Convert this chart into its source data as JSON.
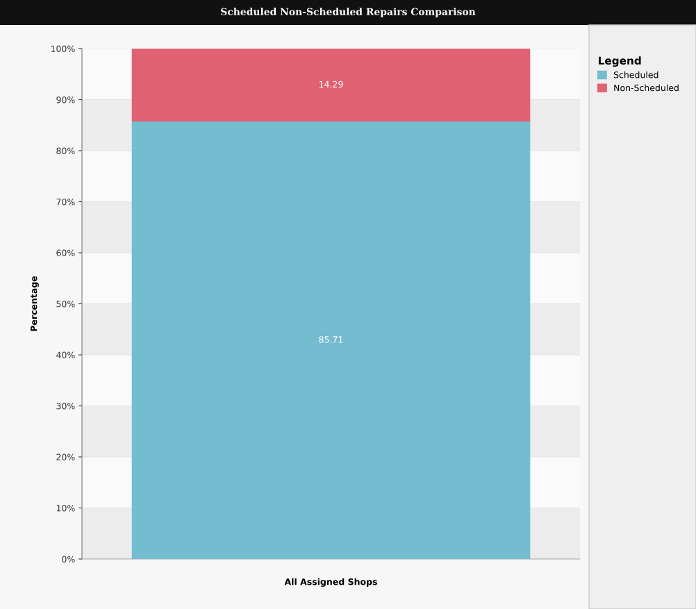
{
  "chart_data": {
    "type": "bar",
    "title": "Scheduled Non-Scheduled Repairs Comparison",
    "ylabel": "Percentage",
    "categories": [
      "All Assigned Shops"
    ],
    "stacked": true,
    "series": [
      {
        "name": "Scheduled",
        "color": "#74bccf",
        "values": [
          85.71
        ]
      },
      {
        "name": "Non-Scheduled",
        "color": "#e06272",
        "values": [
          14.29
        ]
      }
    ],
    "ylim": [
      0,
      100
    ],
    "yticks": [
      {
        "value": 0,
        "label": "0%"
      },
      {
        "value": 10,
        "label": "10%"
      },
      {
        "value": 20,
        "label": "20%"
      },
      {
        "value": 30,
        "label": "30%"
      },
      {
        "value": 40,
        "label": "40%"
      },
      {
        "value": 50,
        "label": "50%"
      },
      {
        "value": 60,
        "label": "60%"
      },
      {
        "value": 70,
        "label": "70%"
      },
      {
        "value": 80,
        "label": "80%"
      },
      {
        "value": 90,
        "label": "90%"
      },
      {
        "value": 100,
        "label": "100%"
      }
    ],
    "data_labels": true,
    "legend": "right",
    "legend_title": "Legend",
    "grid": "y"
  }
}
